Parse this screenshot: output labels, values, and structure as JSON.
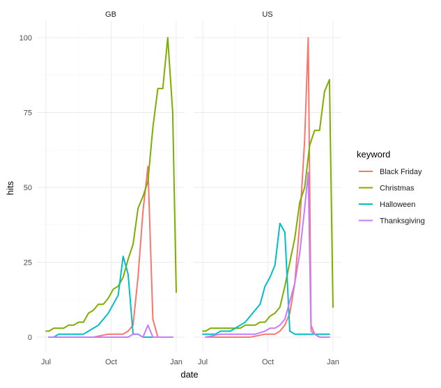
{
  "chart_data": {
    "type": "line",
    "facets": [
      "GB",
      "US"
    ],
    "x_axis": {
      "label": "date",
      "ticks": [
        "Jul",
        "Oct",
        "Jan"
      ],
      "tick_dates": [
        "2020-07-01",
        "2020-10-01",
        "2021-01-01"
      ],
      "range": [
        "2020-06-28",
        "2021-01-03"
      ]
    },
    "y_axis": {
      "label": "hits",
      "ticks": [
        0,
        25,
        50,
        75,
        100
      ],
      "range": [
        0,
        100
      ]
    },
    "grid": true,
    "legend": {
      "title": "keyword",
      "position": "right"
    },
    "series": [
      {
        "name": "Black Friday",
        "color": "#F8766D",
        "panels": {
          "GB": [
            [
              "2020-07-05",
              0
            ],
            [
              "2020-07-26",
              0
            ],
            [
              "2020-08-16",
              0
            ],
            [
              "2020-09-06",
              0
            ],
            [
              "2020-09-27",
              1
            ],
            [
              "2020-10-11",
              1
            ],
            [
              "2020-10-18",
              1
            ],
            [
              "2020-10-25",
              2
            ],
            [
              "2020-11-01",
              4
            ],
            [
              "2020-11-08",
              20
            ],
            [
              "2020-11-15",
              42
            ],
            [
              "2020-11-22",
              57
            ],
            [
              "2020-11-29",
              6
            ],
            [
              "2020-12-06",
              0
            ],
            [
              "2020-12-13",
              0
            ],
            [
              "2020-12-27",
              0
            ]
          ],
          "US": [
            [
              "2020-07-05",
              0
            ],
            [
              "2020-07-26",
              0
            ],
            [
              "2020-08-16",
              0
            ],
            [
              "2020-09-06",
              0
            ],
            [
              "2020-09-27",
              1
            ],
            [
              "2020-10-11",
              1
            ],
            [
              "2020-10-18",
              2
            ],
            [
              "2020-10-25",
              4
            ],
            [
              "2020-11-01",
              8
            ],
            [
              "2020-11-08",
              18
            ],
            [
              "2020-11-15",
              38
            ],
            [
              "2020-11-22",
              66
            ],
            [
              "2020-11-27",
              100
            ],
            [
              "2020-12-01",
              4
            ],
            [
              "2020-12-06",
              1
            ],
            [
              "2020-12-13",
              0
            ],
            [
              "2020-12-27",
              0
            ]
          ]
        }
      },
      {
        "name": "Christmas",
        "color": "#7CAE00",
        "panels": {
          "GB": [
            [
              "2020-07-01",
              2
            ],
            [
              "2020-07-05",
              2
            ],
            [
              "2020-07-12",
              3
            ],
            [
              "2020-07-19",
              3
            ],
            [
              "2020-07-26",
              3
            ],
            [
              "2020-08-02",
              4
            ],
            [
              "2020-08-09",
              4
            ],
            [
              "2020-08-16",
              5
            ],
            [
              "2020-08-23",
              5
            ],
            [
              "2020-08-30",
              8
            ],
            [
              "2020-09-06",
              9
            ],
            [
              "2020-09-13",
              11
            ],
            [
              "2020-09-20",
              11
            ],
            [
              "2020-09-27",
              13
            ],
            [
              "2020-10-04",
              16
            ],
            [
              "2020-10-11",
              17
            ],
            [
              "2020-10-18",
              20
            ],
            [
              "2020-10-25",
              26
            ],
            [
              "2020-11-01",
              31
            ],
            [
              "2020-11-08",
              43
            ],
            [
              "2020-11-15",
              47
            ],
            [
              "2020-11-22",
              52
            ],
            [
              "2020-11-29",
              70
            ],
            [
              "2020-12-06",
              83
            ],
            [
              "2020-12-13",
              83
            ],
            [
              "2020-12-20",
              100
            ],
            [
              "2020-12-27",
              75
            ],
            [
              "2021-01-01",
              15
            ]
          ],
          "US": [
            [
              "2020-07-01",
              2
            ],
            [
              "2020-07-05",
              2
            ],
            [
              "2020-07-12",
              3
            ],
            [
              "2020-07-19",
              3
            ],
            [
              "2020-07-26",
              3
            ],
            [
              "2020-08-02",
              3
            ],
            [
              "2020-08-09",
              3
            ],
            [
              "2020-08-16",
              3
            ],
            [
              "2020-08-23",
              3
            ],
            [
              "2020-08-30",
              4
            ],
            [
              "2020-09-06",
              4
            ],
            [
              "2020-09-13",
              4
            ],
            [
              "2020-09-20",
              5
            ],
            [
              "2020-09-27",
              5
            ],
            [
              "2020-10-04",
              7
            ],
            [
              "2020-10-11",
              8
            ],
            [
              "2020-10-18",
              10
            ],
            [
              "2020-10-25",
              17
            ],
            [
              "2020-11-01",
              25
            ],
            [
              "2020-11-08",
              33
            ],
            [
              "2020-11-15",
              45
            ],
            [
              "2020-11-22",
              50
            ],
            [
              "2020-11-29",
              64
            ],
            [
              "2020-12-06",
              69
            ],
            [
              "2020-12-13",
              69
            ],
            [
              "2020-12-20",
              82
            ],
            [
              "2020-12-27",
              86
            ],
            [
              "2021-01-01",
              10
            ]
          ]
        }
      },
      {
        "name": "Halloween",
        "color": "#00BFC4",
        "panels": {
          "GB": [
            [
              "2020-07-05",
              0
            ],
            [
              "2020-07-12",
              0
            ],
            [
              "2020-07-19",
              1
            ],
            [
              "2020-07-26",
              1
            ],
            [
              "2020-08-02",
              1
            ],
            [
              "2020-08-09",
              1
            ],
            [
              "2020-08-16",
              1
            ],
            [
              "2020-08-23",
              1
            ],
            [
              "2020-08-30",
              2
            ],
            [
              "2020-09-06",
              3
            ],
            [
              "2020-09-13",
              4
            ],
            [
              "2020-09-20",
              6
            ],
            [
              "2020-09-27",
              8
            ],
            [
              "2020-10-04",
              11
            ],
            [
              "2020-10-11",
              14
            ],
            [
              "2020-10-18",
              27
            ],
            [
              "2020-10-25",
              21
            ],
            [
              "2020-11-01",
              1
            ],
            [
              "2020-11-08",
              1
            ],
            [
              "2020-11-15",
              0
            ],
            [
              "2020-11-29",
              0
            ],
            [
              "2020-12-27",
              0
            ]
          ],
          "US": [
            [
              "2020-07-01",
              1
            ],
            [
              "2020-07-05",
              1
            ],
            [
              "2020-07-12",
              1
            ],
            [
              "2020-07-19",
              1
            ],
            [
              "2020-07-26",
              2
            ],
            [
              "2020-08-02",
              2
            ],
            [
              "2020-08-09",
              2
            ],
            [
              "2020-08-16",
              3
            ],
            [
              "2020-08-23",
              4
            ],
            [
              "2020-08-30",
              5
            ],
            [
              "2020-09-06",
              7
            ],
            [
              "2020-09-13",
              9
            ],
            [
              "2020-09-20",
              11
            ],
            [
              "2020-09-27",
              17
            ],
            [
              "2020-10-04",
              20
            ],
            [
              "2020-10-11",
              24
            ],
            [
              "2020-10-18",
              38
            ],
            [
              "2020-10-25",
              35
            ],
            [
              "2020-11-01",
              2
            ],
            [
              "2020-11-08",
              1
            ],
            [
              "2020-11-15",
              1
            ],
            [
              "2020-11-29",
              1
            ],
            [
              "2020-12-13",
              1
            ],
            [
              "2020-12-27",
              1
            ]
          ]
        }
      },
      {
        "name": "Thanksgiving",
        "color": "#C77CFF",
        "panels": {
          "GB": [
            [
              "2020-07-05",
              0
            ],
            [
              "2020-08-16",
              0
            ],
            [
              "2020-09-27",
              0
            ],
            [
              "2020-10-25",
              0
            ],
            [
              "2020-11-01",
              1
            ],
            [
              "2020-11-08",
              1
            ],
            [
              "2020-11-15",
              0
            ],
            [
              "2020-11-22",
              4
            ],
            [
              "2020-11-29",
              0
            ],
            [
              "2020-12-13",
              0
            ],
            [
              "2020-12-27",
              0
            ]
          ],
          "US": [
            [
              "2020-07-05",
              0
            ],
            [
              "2020-07-26",
              1
            ],
            [
              "2020-08-16",
              1
            ],
            [
              "2020-09-06",
              1
            ],
            [
              "2020-09-13",
              1
            ],
            [
              "2020-09-27",
              2
            ],
            [
              "2020-10-04",
              3
            ],
            [
              "2020-10-11",
              3
            ],
            [
              "2020-10-18",
              4
            ],
            [
              "2020-10-25",
              6
            ],
            [
              "2020-11-01",
              12
            ],
            [
              "2020-11-08",
              18
            ],
            [
              "2020-11-15",
              28
            ],
            [
              "2020-11-22",
              43
            ],
            [
              "2020-11-27",
              55
            ],
            [
              "2020-12-01",
              2
            ],
            [
              "2020-12-06",
              1
            ],
            [
              "2020-12-13",
              0
            ],
            [
              "2020-12-27",
              0
            ]
          ]
        }
      }
    ]
  }
}
